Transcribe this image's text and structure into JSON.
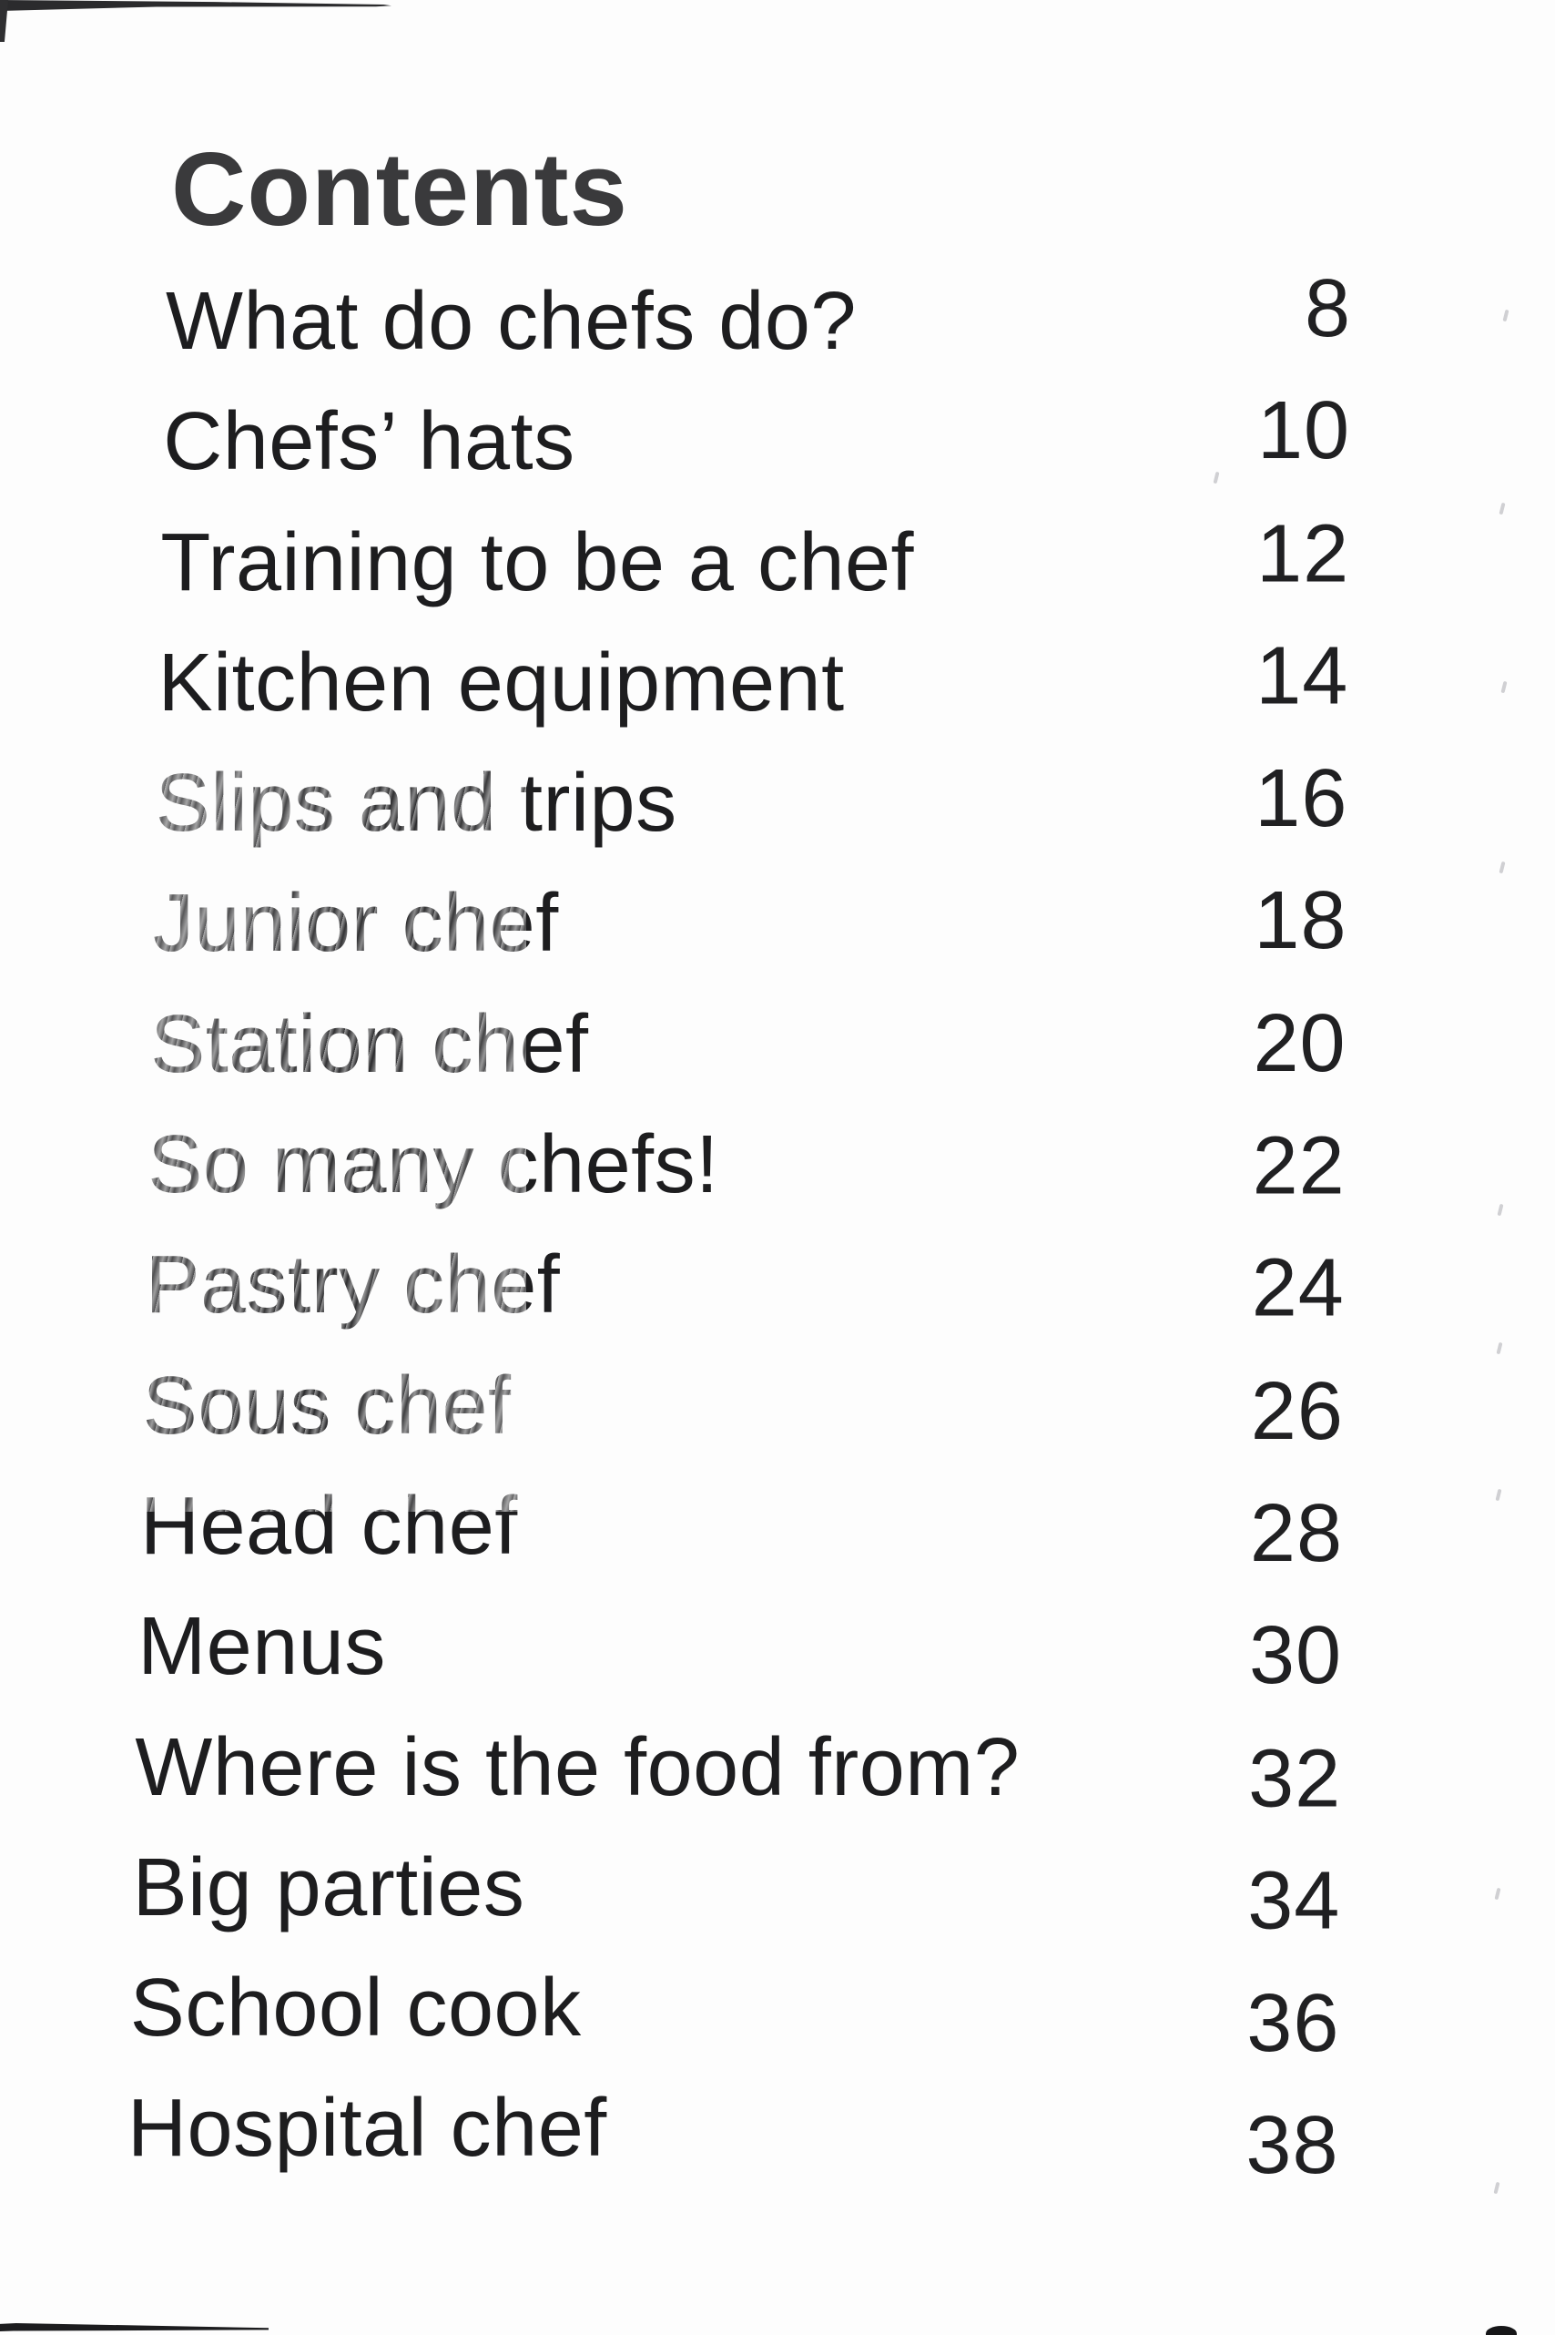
{
  "page": {
    "title": "Contents",
    "entries": [
      {
        "label": "What do chefs do?",
        "page_number": "8"
      },
      {
        "label": "Chefs’ hats",
        "page_number": "10"
      },
      {
        "label": "Training to be a chef",
        "page_number": "12"
      },
      {
        "label": "Kitchen equipment",
        "page_number": "14"
      },
      {
        "label": "Slips and trips",
        "page_number": "16"
      },
      {
        "label": "Junior chef",
        "page_number": "18"
      },
      {
        "label": "Station chef",
        "page_number": "20"
      },
      {
        "label": "So many chefs!",
        "page_number": "22"
      },
      {
        "label": "Pastry chef",
        "page_number": "24"
      },
      {
        "label": "Sous chef",
        "page_number": "26"
      },
      {
        "label": "Head chef",
        "page_number": "28"
      },
      {
        "label": "Menus",
        "page_number": "30"
      },
      {
        "label": "Where is the food from?",
        "page_number": "32"
      },
      {
        "label": "Big parties",
        "page_number": "34"
      },
      {
        "label": "School cook",
        "page_number": "36"
      },
      {
        "label": "Hospital chef",
        "page_number": "38"
      }
    ]
  },
  "colors": {
    "background": "#fdfdfd",
    "title_text": "#3a3a3c",
    "entry_text": "#1d1d1f",
    "page_number_text": "#202022"
  }
}
